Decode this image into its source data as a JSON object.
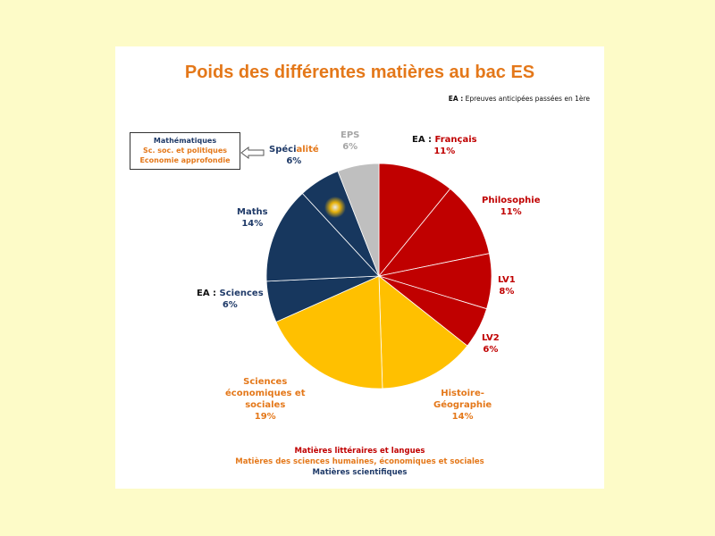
{
  "chart_data": {
    "type": "pie",
    "title": "Poids des différentes matières au bac ES",
    "note_prefix": "EA :",
    "note_text": "Epreuves anticipées passées en 1ère",
    "slices": [
      {
        "prefix": "EA : ",
        "label": "Français",
        "value": 11,
        "pct": "11%",
        "color": "#c00000"
      },
      {
        "prefix": "",
        "label": "Philosophie",
        "value": 11,
        "pct": "11%",
        "color": "#c00000"
      },
      {
        "prefix": "",
        "label": "LV1",
        "value": 8,
        "pct": "8%",
        "color": "#c00000"
      },
      {
        "prefix": "",
        "label": "LV2",
        "value": 6,
        "pct": "6%",
        "color": "#c00000"
      },
      {
        "prefix": "",
        "label": "Histoire-Géographie",
        "label_lines": [
          "Histoire-",
          "Géographie"
        ],
        "value": 14,
        "pct": "14%",
        "color": "#ffc000"
      },
      {
        "prefix": "",
        "label": "Sciences économiques et sociales",
        "label_lines": [
          "Sciences",
          "économiques et",
          "sociales"
        ],
        "value": 19,
        "pct": "19%",
        "color": "#ffc000"
      },
      {
        "prefix": "EA : ",
        "label": "Sciences",
        "value": 6,
        "pct": "6%",
        "color": "#17375e"
      },
      {
        "prefix": "",
        "label": "Maths",
        "value": 14,
        "pct": "14%",
        "color": "#17375e"
      },
      {
        "prefix": "",
        "label": "Spécialité",
        "label_parts": [
          "Spéci",
          "alité"
        ],
        "value": 6,
        "pct": "6%",
        "color": "#17375e"
      },
      {
        "prefix": "",
        "label": "EPS",
        "value": 6,
        "pct": "6%",
        "color": "#bfbfbf"
      }
    ],
    "specialite_options": [
      "Mathématiques",
      "Sc. soc. et politiques",
      "Economie approfondie"
    ],
    "legend": [
      {
        "text": "Matières littéraires et langues",
        "color": "#c00000"
      },
      {
        "text": "Matières des sciences humaines, économiques et sociales",
        "color": "#e4781a"
      },
      {
        "text": "Matières scientifiques",
        "color": "#1f3a68"
      }
    ]
  }
}
